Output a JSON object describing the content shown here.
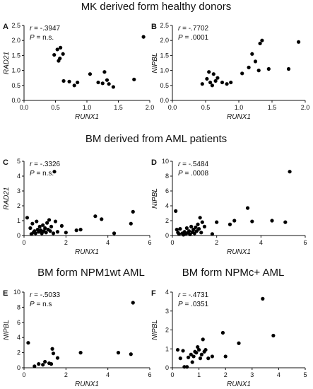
{
  "section_titles": [
    "MK derived form healthy donors",
    "BM derived from AML patients",
    "BM form NPM1wt AML",
    "BM form NPMc+ AML"
  ],
  "chart_data": [
    {
      "type": "scatter",
      "panel": "A",
      "title": "",
      "xlabel": "RUNX1",
      "ylabel": "RAD21",
      "xlim": [
        0.0,
        2.0
      ],
      "ylim": [
        0.0,
        2.5
      ],
      "xticks": [
        "0.0",
        "0.5",
        "1.0",
        "1.5",
        "2.0"
      ],
      "yticks": [
        "0.0",
        "0.5",
        "1.0",
        "1.5",
        "2.0",
        "2.5"
      ],
      "grid": false,
      "stats": {
        "r_label": "r",
        "r_value": "= -.3947",
        "p_label": "P",
        "p_value": "= n.s."
      },
      "points": [
        [
          0.48,
          1.52
        ],
        [
          0.53,
          1.7
        ],
        [
          0.55,
          1.32
        ],
        [
          0.57,
          1.4
        ],
        [
          0.58,
          1.76
        ],
        [
          0.62,
          1.55
        ],
        [
          0.63,
          0.65
        ],
        [
          0.72,
          0.63
        ],
        [
          0.8,
          0.5
        ],
        [
          0.85,
          0.6
        ],
        [
          1.05,
          0.88
        ],
        [
          1.18,
          0.6
        ],
        [
          1.25,
          0.57
        ],
        [
          1.28,
          0.95
        ],
        [
          1.32,
          0.68
        ],
        [
          1.35,
          0.55
        ],
        [
          1.42,
          0.45
        ],
        [
          1.75,
          0.7
        ],
        [
          1.9,
          2.12
        ]
      ]
    },
    {
      "type": "scatter",
      "panel": "B",
      "title": "",
      "xlabel": "RUNX1",
      "ylabel": "NIPBL",
      "xlim": [
        0.0,
        2.0
      ],
      "ylim": [
        0.0,
        2.5
      ],
      "xticks": [
        "0.0",
        "0.5",
        "1.0",
        "1.5",
        "2.0"
      ],
      "yticks": [
        "0.0",
        "0.5",
        "1.0",
        "1.5",
        "2.0",
        "2.5"
      ],
      "grid": false,
      "stats": {
        "r_label": "r",
        "r_value": "= -.7702",
        "p_label": "P",
        "p_value": "= .0001"
      },
      "points": [
        [
          0.45,
          0.55
        ],
        [
          0.52,
          0.72
        ],
        [
          0.55,
          0.95
        ],
        [
          0.57,
          0.6
        ],
        [
          0.6,
          0.5
        ],
        [
          0.62,
          0.88
        ],
        [
          0.65,
          0.65
        ],
        [
          0.68,
          0.75
        ],
        [
          0.75,
          0.6
        ],
        [
          0.82,
          0.55
        ],
        [
          0.88,
          0.6
        ],
        [
          1.05,
          0.9
        ],
        [
          1.15,
          1.1
        ],
        [
          1.2,
          1.55
        ],
        [
          1.25,
          1.3
        ],
        [
          1.3,
          1.0
        ],
        [
          1.32,
          1.9
        ],
        [
          1.35,
          2.0
        ],
        [
          1.45,
          1.05
        ],
        [
          1.75,
          1.05
        ],
        [
          1.9,
          1.95
        ]
      ]
    },
    {
      "type": "scatter",
      "panel": "C",
      "title": "",
      "xlabel": "RUNX1",
      "ylabel": "RAD21",
      "xlim": [
        0,
        6
      ],
      "ylim": [
        0,
        5
      ],
      "xticks": [
        "0",
        "2",
        "4",
        "6"
      ],
      "yticks": [
        "0",
        "1",
        "2",
        "3",
        "4",
        "5"
      ],
      "grid": false,
      "stats": {
        "r_label": "r",
        "r_value": "= -.3326",
        "p_label": "P",
        "p_value": "= n.s."
      },
      "points": [
        [
          0.15,
          1.2
        ],
        [
          0.3,
          0.5
        ],
        [
          0.35,
          0.1
        ],
        [
          0.4,
          0.8
        ],
        [
          0.45,
          0.2
        ],
        [
          0.5,
          0.3
        ],
        [
          0.55,
          0.15
        ],
        [
          0.6,
          0.95
        ],
        [
          0.65,
          0.4
        ],
        [
          0.7,
          0.25
        ],
        [
          0.75,
          0.6
        ],
        [
          0.8,
          0.35
        ],
        [
          0.85,
          0.15
        ],
        [
          0.9,
          0.7
        ],
        [
          0.95,
          0.3
        ],
        [
          1.0,
          0.5
        ],
        [
          1.05,
          0.2
        ],
        [
          1.1,
          0.85
        ],
        [
          1.15,
          0.4
        ],
        [
          1.2,
          1.05
        ],
        [
          1.25,
          0.3
        ],
        [
          1.3,
          0.6
        ],
        [
          1.4,
          0.15
        ],
        [
          1.45,
          4.3
        ],
        [
          1.5,
          0.95
        ],
        [
          1.6,
          0.25
        ],
        [
          1.8,
          0.65
        ],
        [
          2.0,
          0.2
        ],
        [
          2.5,
          0.35
        ],
        [
          2.7,
          0.4
        ],
        [
          3.4,
          1.3
        ],
        [
          3.7,
          1.1
        ],
        [
          4.3,
          0.15
        ],
        [
          5.1,
          0.8
        ],
        [
          5.2,
          1.6
        ]
      ]
    },
    {
      "type": "scatter",
      "panel": "D",
      "title": "",
      "xlabel": "RUNX1",
      "ylabel": "NIPBL",
      "xlim": [
        0,
        6
      ],
      "ylim": [
        0,
        10
      ],
      "xticks": [
        "0",
        "2",
        "4",
        "6"
      ],
      "yticks": [
        "0",
        "2",
        "4",
        "6",
        "8",
        "10"
      ],
      "grid": false,
      "stats": {
        "r_label": "r",
        "r_value": "= -.5484",
        "p_label": "P",
        "p_value": "= .0008"
      },
      "points": [
        [
          0.15,
          3.3
        ],
        [
          0.2,
          0.8
        ],
        [
          0.25,
          0.4
        ],
        [
          0.3,
          0.2
        ],
        [
          0.35,
          0.9
        ],
        [
          0.45,
          0.3
        ],
        [
          0.5,
          0.1
        ],
        [
          0.55,
          0.5
        ],
        [
          0.6,
          0.25
        ],
        [
          0.65,
          1.0
        ],
        [
          0.7,
          0.35
        ],
        [
          0.75,
          0.6
        ],
        [
          0.8,
          0.15
        ],
        [
          0.85,
          1.2
        ],
        [
          0.9,
          0.45
        ],
        [
          0.95,
          0.8
        ],
        [
          1.0,
          0.3
        ],
        [
          1.05,
          1.1
        ],
        [
          1.1,
          0.6
        ],
        [
          1.15,
          1.5
        ],
        [
          1.2,
          0.9
        ],
        [
          1.25,
          2.4
        ],
        [
          1.3,
          0.4
        ],
        [
          1.35,
          1.8
        ],
        [
          1.45,
          1.2
        ],
        [
          1.8,
          0.2
        ],
        [
          2.0,
          1.8
        ],
        [
          2.6,
          1.5
        ],
        [
          2.8,
          2.0
        ],
        [
          3.4,
          3.7
        ],
        [
          3.6,
          1.9
        ],
        [
          4.5,
          2.0
        ],
        [
          5.1,
          1.8
        ],
        [
          5.3,
          8.6
        ]
      ]
    },
    {
      "type": "scatter",
      "panel": "E",
      "title": "",
      "xlabel": "RUNX1",
      "ylabel": "NIPBL",
      "xlim": [
        0,
        6
      ],
      "ylim": [
        0,
        10
      ],
      "xticks": [
        "0",
        "2",
        "4",
        "6"
      ],
      "yticks": [
        "0",
        "2",
        "4",
        "6",
        "8",
        "10"
      ],
      "grid": false,
      "stats": {
        "r_label": "r",
        "r_value": "= -.5033",
        "p_label": "P",
        "p_value": "= n.s"
      },
      "points": [
        [
          0.2,
          3.3
        ],
        [
          0.5,
          0.2
        ],
        [
          0.7,
          0.5
        ],
        [
          0.9,
          0.4
        ],
        [
          1.0,
          0.8
        ],
        [
          1.2,
          0.6
        ],
        [
          1.3,
          0.5
        ],
        [
          1.35,
          2.5
        ],
        [
          1.4,
          1.9
        ],
        [
          1.6,
          1.3
        ],
        [
          2.7,
          2.0
        ],
        [
          4.5,
          2.0
        ],
        [
          5.1,
          1.8
        ],
        [
          5.2,
          8.6
        ]
      ]
    },
    {
      "type": "scatter",
      "panel": "F",
      "title": "",
      "xlabel": "RUNX1",
      "ylabel": "NIPBL",
      "xlim": [
        0,
        5
      ],
      "ylim": [
        0,
        4
      ],
      "xticks": [
        "0",
        "1",
        "2",
        "3",
        "4",
        "5"
      ],
      "yticks": [
        "0",
        "1",
        "2",
        "3",
        "4"
      ],
      "grid": false,
      "stats": {
        "r_label": "r",
        "r_value": "= -.4731",
        "p_label": "P",
        "p_value": "= .0351"
      },
      "points": [
        [
          0.2,
          0.95
        ],
        [
          0.3,
          0.5
        ],
        [
          0.4,
          0.9
        ],
        [
          0.45,
          0.05
        ],
        [
          0.55,
          0.05
        ],
        [
          0.6,
          0.55
        ],
        [
          0.7,
          0.7
        ],
        [
          0.75,
          0.3
        ],
        [
          0.8,
          0.6
        ],
        [
          0.85,
          0.85
        ],
        [
          0.9,
          0.8
        ],
        [
          0.95,
          1.1
        ],
        [
          1.0,
          0.95
        ],
        [
          1.05,
          0.5
        ],
        [
          1.1,
          0.7
        ],
        [
          1.15,
          1.5
        ],
        [
          1.2,
          0.85
        ],
        [
          1.25,
          0.95
        ],
        [
          1.35,
          0.5
        ],
        [
          1.5,
          0.6
        ],
        [
          1.9,
          1.85
        ],
        [
          2.0,
          0.6
        ],
        [
          2.5,
          1.3
        ],
        [
          3.4,
          3.65
        ],
        [
          3.8,
          1.7
        ]
      ]
    }
  ]
}
